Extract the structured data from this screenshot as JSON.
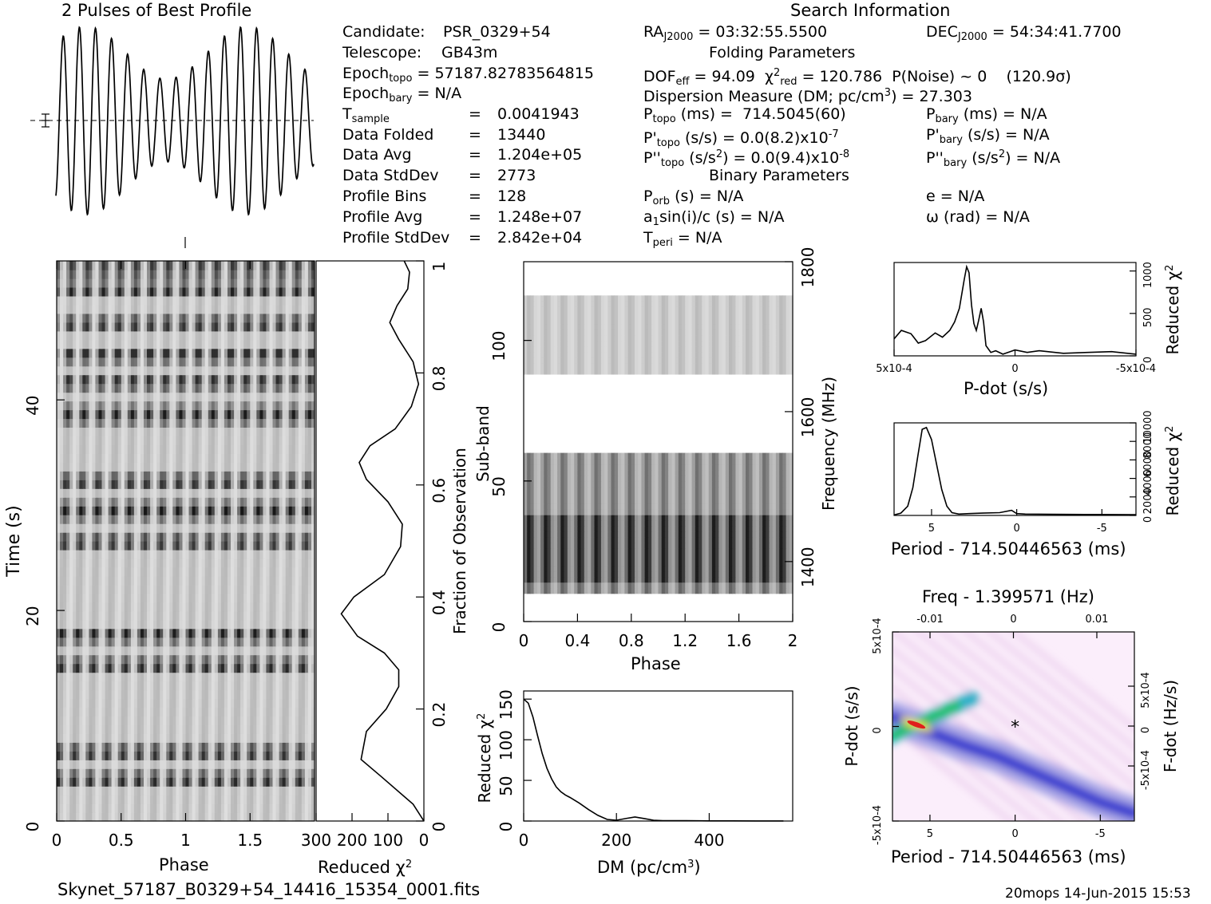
{
  "titles": {
    "profile": "2 Pulses of Best Profile",
    "search": "Search Information",
    "folding": "Folding Parameters",
    "binary": "Binary Parameters"
  },
  "info": {
    "candidate_label": "Candidate:",
    "candidate": "PSR_0329+54",
    "telescope_label": "Telescope:",
    "telescope": "GB43m",
    "epoch_topo": "57187.82783564815",
    "epoch_bary": "N/A",
    "t_sample": "0.0041943",
    "data_folded_label": "Data Folded",
    "data_folded": "13440",
    "data_avg_label": "Data Avg",
    "data_avg": "1.204e+05",
    "data_std_label": "Data StdDev",
    "data_std": "2773",
    "prof_bins_label": "Profile Bins",
    "prof_bins": "128",
    "prof_avg_label": "Profile Avg",
    "prof_avg": "1.248e+07",
    "prof_std_label": "Profile StdDev",
    "prof_std": "2.842e+04",
    "ra": "03:32:55.5500",
    "dec": "54:34:41.7700",
    "dof_eff": "94.09",
    "chi2_red": "120.786",
    "p_noise": "P(Noise) ~ 0",
    "sigma": "(120.9σ)",
    "dm": "27.303",
    "p_topo": "714.5045(60)",
    "p_bary": "N/A",
    "pd_topo": "0.0(8.2)x10",
    "pd_topo_exp": "-7",
    "pd_bary": "N/A",
    "pdd_topo": "0.0(9.4)x10",
    "pdd_topo_exp": "-8",
    "pdd_bary": "N/A",
    "p_orb": "N/A",
    "e": "N/A",
    "a1sini": "N/A",
    "omega": "N/A",
    "t_peri": "N/A"
  },
  "footer": {
    "filename": "Skynet_57187_B0329+54_14416_15354_0001.fits",
    "stamp": "20mops 14-Jun-2015 15:53"
  },
  "axes": {
    "phase": "Phase",
    "time": "Time (s)",
    "reduced_chi2": "Reduced χ",
    "fraction": "Fraction of Observation",
    "subband": "Sub-band",
    "frequency": "Frequency (MHz)",
    "dm": "DM (pc/cm",
    "pdot": "P-dot (s/s)",
    "period": "Period - 714.50446563 (ms)",
    "freq_top": "Freq - 1.399571 (Hz)",
    "fdot": "F-dot (Hz/s)"
  },
  "chart_data": [
    {
      "type": "line",
      "name": "profile",
      "title": "2 Pulses of Best Profile",
      "x_range": [
        0,
        2
      ],
      "pulses_per_turn": 8,
      "turns": 2
    },
    {
      "type": "heatmap",
      "name": "time-phase",
      "xlabel": "Phase",
      "ylabel": "Time (s)",
      "x_range": [
        0,
        2
      ],
      "y_range": [
        0,
        53.2
      ],
      "x_ticks": [
        "0",
        "0.5",
        "1",
        "1.5"
      ],
      "y_ticks": [
        "0",
        "20",
        "40"
      ],
      "dark_rows_time_s": [
        3.9,
        6.5,
        14.7,
        17.8,
        26.5,
        29.5,
        32.2,
        38.6,
        41.8,
        44.4,
        47.2,
        50.4,
        52.5
      ]
    },
    {
      "type": "line",
      "name": "chi2-vs-time",
      "xlabel": "Reduced χ2",
      "ylabel": "Fraction of Observation",
      "x_range": [
        300,
        0
      ],
      "y_range": [
        0,
        1
      ],
      "x_ticks": [
        "300",
        "200",
        "100",
        "0"
      ],
      "y_ticks": [
        "0",
        "0.2",
        "0.4",
        "0.6",
        "0.8",
        "1"
      ],
      "x": [
        0,
        30,
        120,
        175,
        160,
        105,
        70,
        70,
        110,
        185,
        230,
        195,
        110,
        65,
        60,
        100,
        160,
        180,
        150,
        80,
        35,
        15,
        30,
        70,
        95,
        75,
        45,
        40,
        55
      ],
      "y": [
        0.0,
        0.03,
        0.08,
        0.11,
        0.16,
        0.2,
        0.24,
        0.27,
        0.3,
        0.33,
        0.37,
        0.4,
        0.44,
        0.49,
        0.53,
        0.57,
        0.61,
        0.64,
        0.67,
        0.7,
        0.74,
        0.78,
        0.82,
        0.86,
        0.89,
        0.92,
        0.95,
        0.98,
        1.0
      ]
    },
    {
      "type": "heatmap",
      "name": "subband-phase",
      "xlabel": "Phase",
      "ylabel": "Sub-band",
      "y2label": "Frequency (MHz)",
      "x_range": [
        0,
        2
      ],
      "y_range": [
        0,
        128
      ],
      "x_ticks": [
        "0",
        "0.4",
        "0.8",
        "1.2",
        "1.6",
        "2"
      ],
      "y_ticks": [
        "0",
        "50",
        "100"
      ],
      "y2_ticks": [
        "1400",
        "1600",
        "1800"
      ],
      "bands": [
        [
          10,
          60
        ],
        [
          88,
          116
        ]
      ]
    },
    {
      "type": "line",
      "name": "chi2-vs-dm",
      "xlabel": "DM (pc/cm3)",
      "ylabel": "Reduced χ2",
      "x_range": [
        0,
        580
      ],
      "y_range": [
        0,
        160
      ],
      "x_ticks": [
        "0",
        "200",
        "400"
      ],
      "y_ticks": [
        "0",
        "50",
        "100",
        "150"
      ],
      "x": [
        0,
        10,
        20,
        30,
        40,
        50,
        60,
        70,
        80,
        90,
        100,
        120,
        140,
        160,
        180,
        200,
        220,
        240,
        260,
        280,
        300,
        350,
        400,
        450,
        500,
        560
      ],
      "y": [
        150,
        145,
        128,
        105,
        83,
        65,
        52,
        42,
        36,
        32,
        29,
        22,
        14,
        7,
        2,
        1,
        3,
        5,
        3,
        1,
        0.5,
        0.5,
        0.2,
        0.2,
        0.1,
        0.1
      ]
    },
    {
      "type": "line",
      "name": "chi2-vs-pdot",
      "xlabel": "P-dot (s/s)",
      "ylabel": "Reduced χ2",
      "x_range": [
        0.0005,
        -0.0005
      ],
      "y_range": [
        0,
        1100
      ],
      "x_ticks": [
        "5x10-4",
        "0",
        "-5x10-4"
      ],
      "y_ticks": [
        "0",
        "500",
        "1000"
      ],
      "x": [
        0.0005,
        0.00047,
        0.00043,
        0.0004,
        0.00037,
        0.00033,
        0.0003,
        0.00027,
        0.00025,
        0.00023,
        0.00021,
        0.0002,
        0.00019,
        0.00018,
        0.00017,
        0.00016,
        0.00015,
        0.00014,
        0.00013,
        0.00012,
        0.00011,
        0.0001,
        8e-05,
        5e-05,
        2e-05,
        0,
        -5e-05,
        -0.0001,
        -0.0002,
        -0.0003,
        -0.0004,
        -0.0005
      ],
      "y": [
        200,
        300,
        260,
        150,
        180,
        270,
        220,
        300,
        400,
        560,
        900,
        1050,
        980,
        600,
        380,
        300,
        420,
        560,
        400,
        120,
        80,
        40,
        60,
        20,
        50,
        70,
        40,
        60,
        30,
        40,
        50,
        20
      ]
    },
    {
      "type": "line",
      "name": "chi2-vs-period",
      "xlabel": "Period - 714.50446563 (ms)",
      "ylabel": "Reduced χ2",
      "x_range": [
        7.2,
        -7.0
      ],
      "y_range": [
        0,
        10000
      ],
      "x_ticks": [
        "5",
        "0",
        "-5"
      ],
      "y_ticks": [
        "0",
        "2000",
        "4000",
        "6000",
        "8000",
        "10000"
      ],
      "x": [
        7.2,
        6.8,
        6.4,
        6.1,
        5.8,
        5.55,
        5.3,
        5.0,
        4.7,
        4.4,
        4.1,
        3.8,
        3.4,
        2.8,
        2.0,
        1.0,
        0.3,
        0.0,
        -0.5,
        -2.0,
        -4.0,
        -7.0
      ],
      "y": [
        50,
        250,
        1000,
        3000,
        6500,
        9300,
        9500,
        8200,
        5500,
        2800,
        1000,
        300,
        150,
        200,
        250,
        300,
        550,
        200,
        150,
        120,
        100,
        80
      ]
    },
    {
      "type": "heatmap",
      "name": "period-pdot",
      "xlabel": "Period - 714.50446563 (ms)",
      "ylabel": "P-dot (s/s)",
      "x2label": "Freq - 1.399571 (Hz)",
      "y2label": "F-dot (Hz/s)",
      "x_range": [
        7.2,
        -7.0
      ],
      "y_range": [
        0.0005,
        -0.0005
      ],
      "x_ticks": [
        "5",
        "0",
        "-5"
      ],
      "x2_ticks": [
        "-0.01",
        "0",
        "0.01"
      ],
      "y_ticks": [
        "5x10-4",
        "0",
        "-5x10-4"
      ],
      "y2_ticks": [
        "5x10-4",
        "0",
        "-5x10-4"
      ],
      "ridge": {
        "x": [
          7.2,
          5.0,
          3.0,
          1.0,
          -1.0,
          -3.0,
          -5.0,
          -7.0
        ],
        "y": [
          5e-05,
          -3e-05,
          -0.0001,
          -0.00016,
          -0.00024,
          -0.00032,
          -0.0004,
          -0.00046
        ]
      },
      "peak": {
        "x": 5.8,
        "y": 1e-05,
        "chi2": 1000
      },
      "marker": {
        "x": 0,
        "y": 0
      }
    }
  ]
}
